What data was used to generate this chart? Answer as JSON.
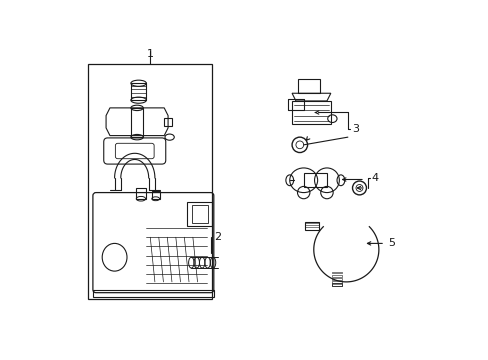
{
  "bg_color": "#ffffff",
  "line_color": "#1a1a1a",
  "lw": 0.8,
  "figsize": [
    4.89,
    3.6
  ],
  "dpi": 100,
  "xlim": [
    0,
    489
  ],
  "ylim": [
    0,
    360
  ]
}
